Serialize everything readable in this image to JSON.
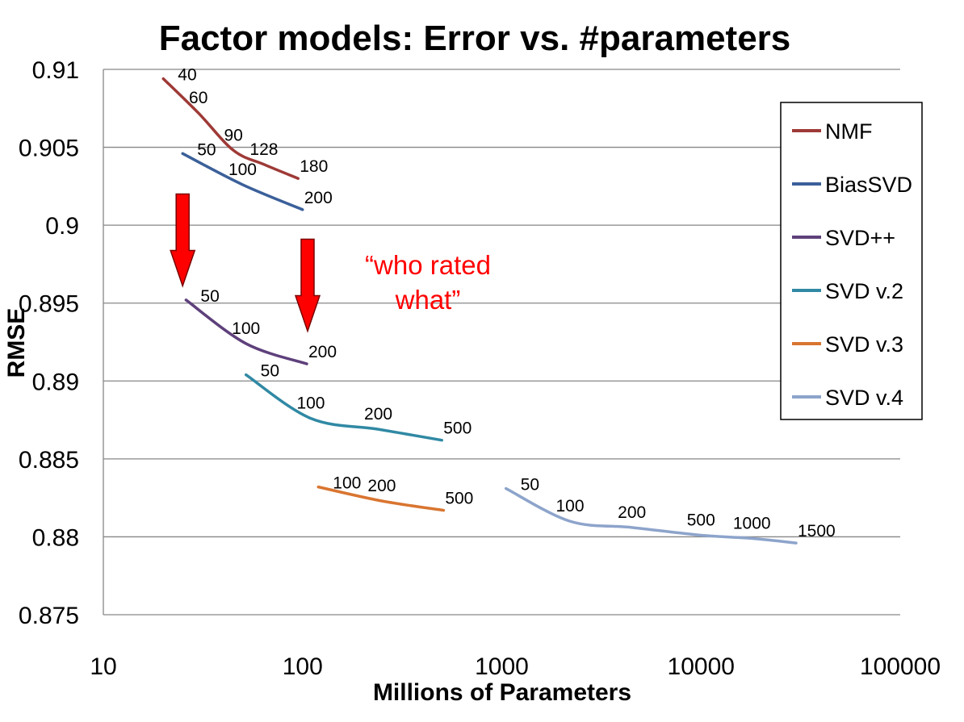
{
  "chart_data": {
    "type": "line",
    "title": "Factor models: Error vs. #parameters",
    "xlabel": "Millions of Parameters",
    "ylabel": "RMSE",
    "x_scale": "log",
    "xlim": [
      10,
      100000
    ],
    "ylim": [
      0.875,
      0.91
    ],
    "x_ticks": [
      "10",
      "100",
      "1000",
      "10000",
      "100000"
    ],
    "y_ticks": [
      "0.875",
      "0.88",
      "0.885",
      "0.89",
      "0.895",
      "0.9",
      "0.905",
      "0.91"
    ],
    "grid": "horizontal",
    "legend_position": "right",
    "series": [
      {
        "name": "NMF",
        "color": "#9e3a37",
        "points": [
          [
            20,
            0.9094,
            "40"
          ],
          [
            30,
            0.9072,
            "60"
          ],
          [
            45,
            0.9048,
            "90"
          ],
          [
            64,
            0.9039,
            "128"
          ],
          [
            95,
            0.903,
            "180"
          ]
        ]
      },
      {
        "name": "BiasSVD",
        "color": "#3b609a",
        "points": [
          [
            25,
            0.9046,
            "50"
          ],
          [
            50,
            0.9026,
            "100"
          ],
          [
            100,
            0.901,
            "200"
          ]
        ]
      },
      {
        "name": "SVD++",
        "color": "#5e407b",
        "points": [
          [
            26,
            0.8952,
            "50"
          ],
          [
            52,
            0.8924,
            "100"
          ],
          [
            105,
            0.8911,
            "200"
          ]
        ]
      },
      {
        "name": "SVD v.2",
        "color": "#3089a4",
        "points": [
          [
            52,
            0.8904,
            "50"
          ],
          [
            110,
            0.8876,
            "100"
          ],
          [
            240,
            0.8869,
            "200"
          ],
          [
            500,
            0.8862,
            "500"
          ]
        ]
      },
      {
        "name": "SVD v.3",
        "color": "#d97530",
        "points": [
          [
            120,
            0.8832,
            "100"
          ],
          [
            250,
            0.8823,
            "200"
          ],
          [
            510,
            0.8817,
            "500"
          ]
        ]
      },
      {
        "name": "SVD v.4",
        "color": "#8da4cb",
        "points": [
          [
            1050,
            0.8831,
            "50"
          ],
          [
            2200,
            0.881,
            "100"
          ],
          [
            4500,
            0.8806,
            "200"
          ],
          [
            10000,
            0.8801,
            "500"
          ],
          [
            18000,
            0.8799,
            "1000"
          ],
          [
            30000,
            0.8796,
            "1500"
          ]
        ]
      }
    ],
    "annotation": {
      "lines": [
        "“who rated",
        "what”"
      ],
      "color": "#ff0000"
    },
    "arrows": [
      {
        "x": 25,
        "y_from": 0.902,
        "y_to": 0.8961,
        "color": "#ff0000"
      },
      {
        "x": 106,
        "y_from": 0.8991,
        "y_to": 0.8932,
        "color": "#ff0000"
      }
    ]
  }
}
